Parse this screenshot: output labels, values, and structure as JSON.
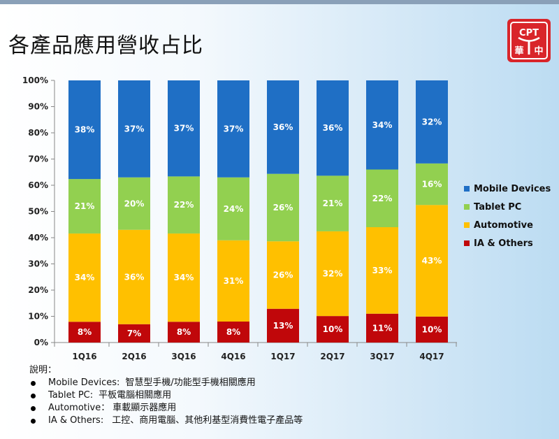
{
  "page": {
    "title": "各產品應用營收占比",
    "logo": {
      "top_text": "CPT",
      "left_char": "華",
      "right_char": "中",
      "color": "#d9252a"
    }
  },
  "chart_data": {
    "type": "bar",
    "stacked": true,
    "percent": true,
    "categories": [
      "1Q16",
      "2Q16",
      "3Q16",
      "4Q16",
      "1Q17",
      "2Q17",
      "3Q17",
      "4Q17"
    ],
    "series": [
      {
        "name": "IA & Others",
        "color": "#c0070a",
        "values": [
          8,
          7,
          8,
          8,
          13,
          10,
          11,
          10
        ]
      },
      {
        "name": "Automotive",
        "color": "#ffc000",
        "values": [
          34,
          36,
          34,
          31,
          26,
          32,
          33,
          43
        ]
      },
      {
        "name": "Tablet PC",
        "color": "#92d050",
        "values": [
          21,
          20,
          22,
          24,
          26,
          21,
          22,
          16
        ]
      },
      {
        "name": "Mobile Devices",
        "color": "#1f6fc5",
        "values": [
          38,
          37,
          37,
          37,
          36,
          36,
          34,
          32
        ]
      }
    ],
    "ylim": [
      0,
      100
    ],
    "yticks": [
      "0%",
      "10%",
      "20%",
      "30%",
      "40%",
      "50%",
      "60%",
      "70%",
      "80%",
      "90%",
      "100%"
    ],
    "legend": {
      "placement": "right",
      "order": [
        "Mobile Devices",
        "Tablet PC",
        "Automotive",
        "IA & Others"
      ]
    },
    "grid": false
  },
  "notes": {
    "heading": "說明：",
    "items": [
      {
        "term": "Mobile Devices:",
        "desc": "智慧型手機/功能型手機相關應用"
      },
      {
        "term": "Tablet PC:",
        "desc": "平板電腦相關應用"
      },
      {
        "term": "Automotive：",
        "desc": "車載顯示器應用"
      },
      {
        "term": "IA & Others:",
        "desc": "工控、商用電腦、其他利基型消費性電子產品等"
      }
    ]
  }
}
